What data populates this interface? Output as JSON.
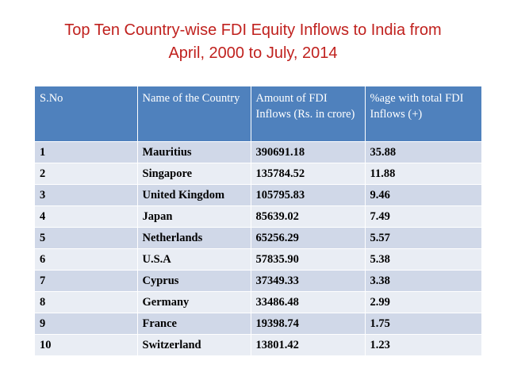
{
  "title": {
    "line1": "Top Ten Country-wise FDI Equity Inflows to India from",
    "line2": "April, 2000 to July, 2014"
  },
  "table": {
    "headers": [
      "S.No",
      "Name of the Country",
      "Amount of FDI Inflows (Rs. in crore)",
      "%age with total FDI Inflows (+)"
    ],
    "rows": [
      [
        "1",
        "Mauritius",
        "390691.18",
        "35.88"
      ],
      [
        "2",
        "Singapore",
        "135784.52",
        "11.88"
      ],
      [
        "3",
        "United Kingdom",
        "105795.83",
        "9.46"
      ],
      [
        "4",
        "Japan",
        "85639.02",
        "7.49"
      ],
      [
        "5",
        "Netherlands",
        "65256.29",
        "5.57"
      ],
      [
        "6",
        "U.S.A",
        "57835.90",
        "5.38"
      ],
      [
        "7",
        "Cyprus",
        "37349.33",
        "3.38"
      ],
      [
        "8",
        "Germany",
        "33486.48",
        "2.99"
      ],
      [
        "9",
        "France",
        "19398.74",
        "1.75"
      ],
      [
        "10",
        "Switzerland",
        "13801.42",
        "1.23"
      ]
    ]
  },
  "colors": {
    "title": "#c0211e",
    "header_bg": "#4f81bd",
    "row_odd": "#d0d8e8",
    "row_even": "#e9edf4"
  }
}
